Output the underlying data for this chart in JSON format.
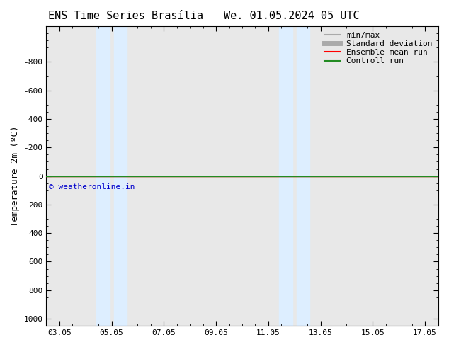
{
  "title_left": "ENS Time Series Brasília",
  "title_right": "We. 01.05.2024 05 UTC",
  "ylabel": "Temperature 2m (ºC)",
  "ylim_top": -1050,
  "ylim_bottom": 1050,
  "yticks": [
    -800,
    -600,
    -400,
    -200,
    0,
    200,
    400,
    600,
    800,
    1000
  ],
  "xlim_left": 2.5,
  "xlim_right": 17.5,
  "xticks": [
    3,
    5,
    7,
    9,
    11,
    13,
    15,
    17
  ],
  "xtick_labels": [
    "03.05",
    "05.05",
    "07.05",
    "09.05",
    "11.05",
    "13.05",
    "15.05",
    "17.05"
  ],
  "shaded_bands": [
    {
      "xmin": 4.42,
      "xmax": 4.92
    },
    {
      "xmin": 5.08,
      "xmax": 5.58
    },
    {
      "xmin": 11.42,
      "xmax": 11.92
    },
    {
      "xmin": 12.08,
      "xmax": 12.58
    }
  ],
  "band_color": "#ddeeff",
  "ensemble_mean_color": "#ff0000",
  "control_run_color": "#228b22",
  "plot_bg_color": "#e8e8e8",
  "figure_bg_color": "#ffffff",
  "watermark": "© weatheronline.in",
  "watermark_color": "#0000cc",
  "legend_items": [
    {
      "label": "min/max",
      "color": "#aaaaaa",
      "lw": 1.5
    },
    {
      "label": "Standard deviation",
      "color": "#aaaaaa",
      "lw": 5
    },
    {
      "label": "Ensemble mean run",
      "color": "#ff0000",
      "lw": 1.5
    },
    {
      "label": "Controll run",
      "color": "#228b22",
      "lw": 1.5
    }
  ],
  "title_fontsize": 11,
  "axis_fontsize": 9,
  "tick_fontsize": 8,
  "legend_fontsize": 8
}
